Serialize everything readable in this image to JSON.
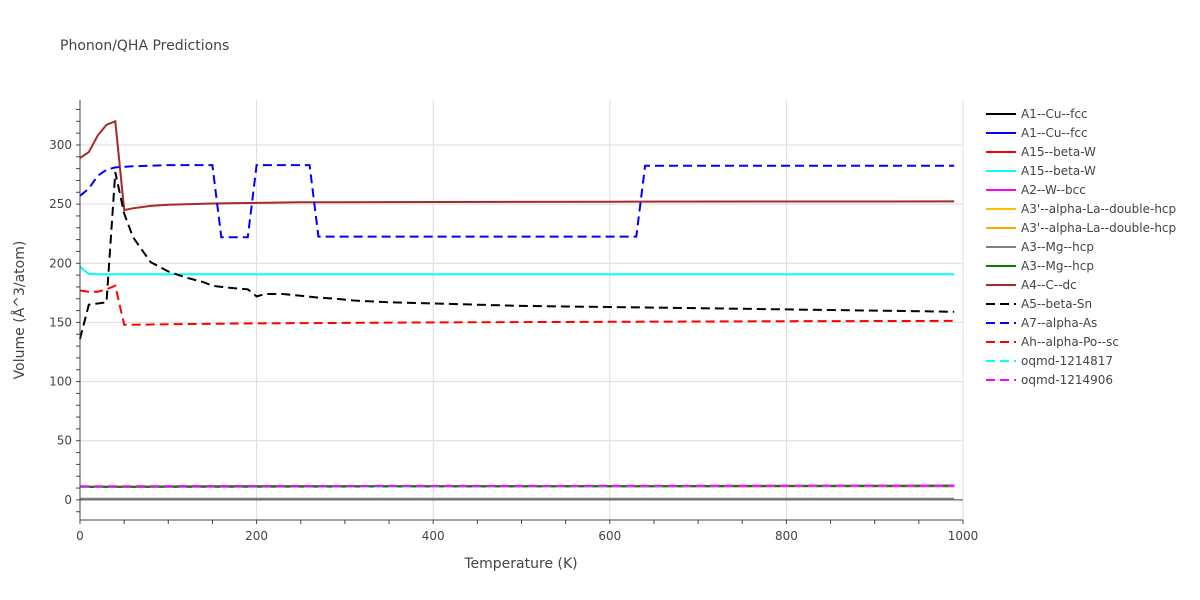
{
  "chart_data": {
    "type": "line",
    "title": "Phonon/QHA Predictions",
    "xlabel": "Temperature (K)",
    "ylabel": "Volume (Å^3/atom)",
    "xlim": [
      0,
      1000
    ],
    "ylim": [
      -17,
      338
    ],
    "x_ticks": [
      0,
      200,
      400,
      600,
      800,
      1000
    ],
    "y_ticks": [
      0,
      50,
      100,
      150,
      200,
      250,
      300
    ],
    "grid": true,
    "legend_position": "right",
    "series": [
      {
        "name": "A1--Cu--fcc",
        "color": "#000000",
        "dash": "solid",
        "x": [
          0,
          100,
          200,
          400,
          600,
          800,
          990
        ],
        "y": [
          11.2,
          11.3,
          11.4,
          11.5,
          11.6,
          11.7,
          11.8
        ]
      },
      {
        "name": "A1--Cu--fcc",
        "color": "#0000ff",
        "dash": "solid",
        "x": [
          0,
          100,
          200,
          400,
          600,
          800,
          990
        ],
        "y": [
          11.3,
          11.4,
          11.5,
          11.6,
          11.7,
          11.8,
          11.9
        ]
      },
      {
        "name": "A15--beta-W",
        "color": "#ff0000",
        "dash": "solid",
        "x": [
          0,
          100,
          200,
          400,
          600,
          800,
          990
        ],
        "y": [
          11.0,
          11.1,
          11.2,
          11.3,
          11.4,
          11.5,
          11.6
        ]
      },
      {
        "name": "A15--beta-W",
        "color": "#00ffff",
        "dash": "solid",
        "x": [
          0,
          5,
          10,
          20,
          40,
          100,
          200,
          400,
          600,
          800,
          990
        ],
        "y": [
          197,
          194,
          191,
          190.8,
          190.8,
          190.8,
          190.8,
          190.8,
          190.8,
          190.8,
          190.8
        ]
      },
      {
        "name": "A2--W--bcc",
        "color": "#ff00ff",
        "dash": "solid",
        "x": [
          0,
          100,
          200,
          400,
          600,
          800,
          990
        ],
        "y": [
          11.2,
          11.3,
          11.4,
          11.5,
          11.6,
          11.7,
          11.8
        ]
      },
      {
        "name": "A3'--alpha-La--double-hcp",
        "color": "#ffbf00",
        "dash": "solid",
        "x": [
          0,
          100,
          200,
          400,
          600,
          800,
          990
        ],
        "y": [
          11.1,
          11.2,
          11.3,
          11.4,
          11.5,
          11.6,
          11.7
        ]
      },
      {
        "name": "A3'--alpha-La--double-hcp",
        "color": "#ffa500",
        "dash": "solid",
        "x": [
          0,
          100,
          200,
          400,
          600,
          800,
          990
        ],
        "y": [
          11.2,
          11.3,
          11.4,
          11.5,
          11.6,
          11.7,
          11.8
        ]
      },
      {
        "name": "A3--Mg--hcp",
        "color": "#808080",
        "dash": "solid",
        "x": [
          0,
          100,
          200,
          400,
          600,
          800,
          990
        ],
        "y": [
          1.0,
          1.0,
          1.0,
          1.0,
          1.0,
          1.0,
          1.0
        ]
      },
      {
        "name": "A3--Mg--hcp",
        "color": "#008000",
        "dash": "solid",
        "x": [
          0,
          100,
          200,
          400,
          600,
          800,
          990
        ],
        "y": [
          11.0,
          11.1,
          11.2,
          11.4,
          11.5,
          11.7,
          11.9
        ]
      },
      {
        "name": "A4--C--dc",
        "color": "#a52a2a",
        "dash": "solid",
        "x": [
          0,
          10,
          20,
          30,
          40,
          50,
          60,
          80,
          100,
          150,
          200,
          250,
          300,
          400,
          600,
          800,
          990
        ],
        "y": [
          289,
          294,
          308,
          317,
          320,
          245,
          246.5,
          248.5,
          249.5,
          250.5,
          251,
          251.5,
          251.5,
          251.8,
          252,
          252.2,
          252.3
        ]
      },
      {
        "name": "A5--beta-Sn",
        "color": "#000000",
        "dash": "dash",
        "x": [
          0,
          10,
          20,
          30,
          40,
          50,
          60,
          80,
          100,
          120,
          140,
          150,
          160,
          180,
          190,
          200,
          210,
          230,
          250,
          270,
          290,
          310,
          350,
          400,
          450,
          500,
          550,
          600,
          650,
          700,
          750,
          800,
          850,
          900,
          950,
          990
        ],
        "y": [
          136,
          165,
          166,
          167,
          277,
          242,
          222,
          201,
          193,
          188,
          184,
          181,
          180,
          178.5,
          178,
          172,
          174,
          174,
          172.5,
          171,
          170,
          168.5,
          167,
          166,
          165,
          164,
          163.5,
          163,
          162.5,
          162,
          161.5,
          161,
          160.5,
          160,
          159.5,
          159
        ]
      },
      {
        "name": "A7--alpha-As",
        "color": "#0000ff",
        "dash": "dash",
        "x": [
          0,
          10,
          20,
          30,
          40,
          50,
          60,
          100,
          150,
          160,
          170,
          190,
          200,
          210,
          260,
          270,
          400,
          600,
          630,
          640,
          800,
          990
        ],
        "y": [
          257,
          263,
          274,
          279,
          281,
          281.5,
          282,
          283,
          283,
          222,
          222,
          222,
          283,
          283,
          283,
          222.5,
          222.5,
          222.5,
          222.5,
          282.5,
          282.5,
          282.5
        ]
      },
      {
        "name": "Ah--alpha-Po--sc",
        "color": "#ff0000",
        "dash": "dash",
        "x": [
          0,
          10,
          20,
          30,
          40,
          50,
          60,
          100,
          200,
          400,
          600,
          800,
          990
        ],
        "y": [
          177,
          176,
          176,
          178,
          181,
          148,
          148,
          148.5,
          149.2,
          150,
          150.5,
          151,
          151.3
        ]
      },
      {
        "name": "oqmd-1214817",
        "color": "#00ffff",
        "dash": "dash",
        "x": [
          0,
          100,
          200,
          400,
          600,
          800,
          990
        ],
        "y": [
          11.2,
          11.3,
          11.4,
          11.5,
          11.6,
          11.7,
          11.8
        ]
      },
      {
        "name": "oqmd-1214906",
        "color": "#ff00ff",
        "dash": "dash",
        "x": [
          0,
          100,
          200,
          400,
          600,
          800,
          990
        ],
        "y": [
          11.5,
          11.6,
          11.7,
          11.8,
          11.9,
          12.0,
          12.1
        ]
      }
    ]
  }
}
